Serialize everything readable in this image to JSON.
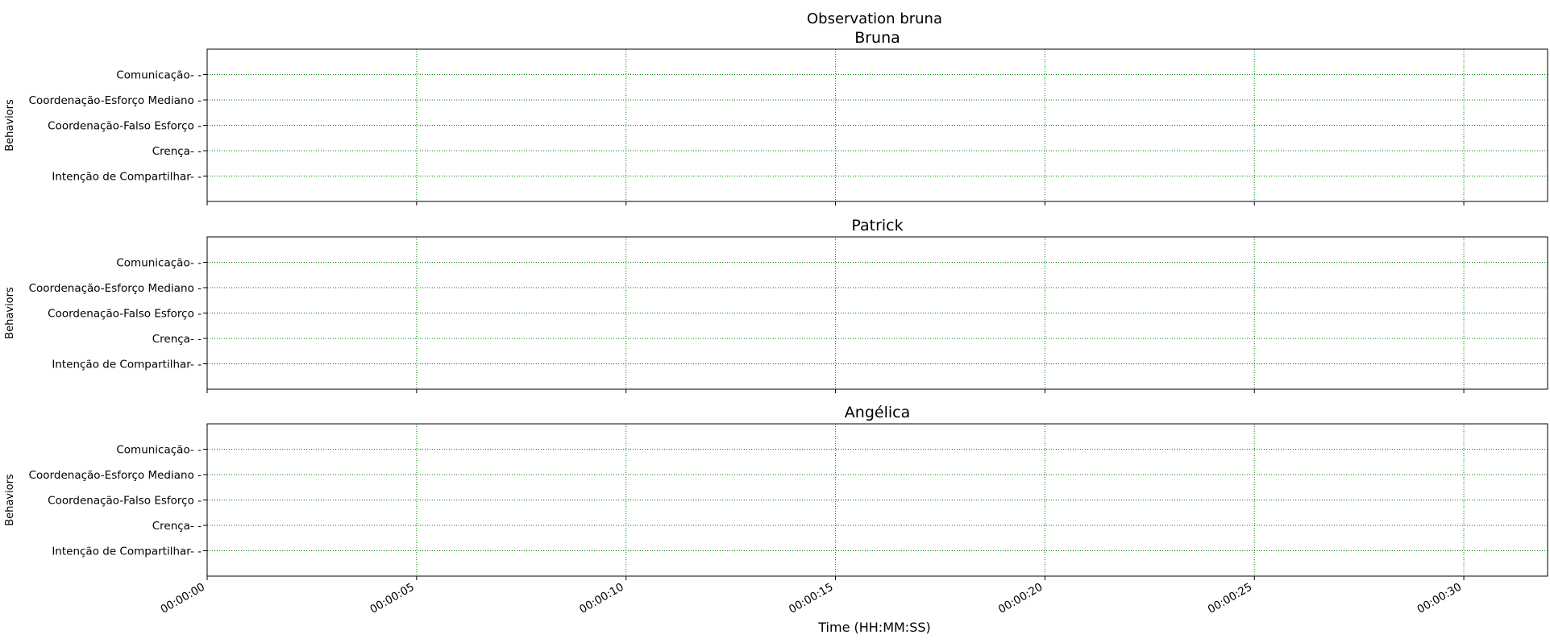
{
  "chart_data": {
    "type": "event-timeline",
    "suptitle": "Observation bruna",
    "xlabel": "Time (HH:MM:SS)",
    "ylabel": "Behaviors",
    "xlim": [
      0,
      32
    ],
    "ylim": [
      -1,
      5
    ],
    "grid": true,
    "grid_color": "#008000",
    "x_ticks": [
      {
        "value": 0,
        "label": "00:00:00"
      },
      {
        "value": 5,
        "label": "00:00:05"
      },
      {
        "value": 10,
        "label": "00:00:10"
      },
      {
        "value": 15,
        "label": "00:00:15"
      },
      {
        "value": 20,
        "label": "00:00:20"
      },
      {
        "value": 25,
        "label": "00:00:25"
      },
      {
        "value": 30,
        "label": "00:00:30"
      }
    ],
    "behaviors": [
      "Comunicação- -",
      "Coordenação-Esforço Mediano -",
      "Coordenação-Falso Esforço -",
      "Crença- -",
      "Intenção de Compartilhar- -"
    ],
    "panels": [
      {
        "title": "Bruna",
        "events": []
      },
      {
        "title": "Patrick",
        "events": []
      },
      {
        "title": "Angélica",
        "events": []
      }
    ]
  }
}
